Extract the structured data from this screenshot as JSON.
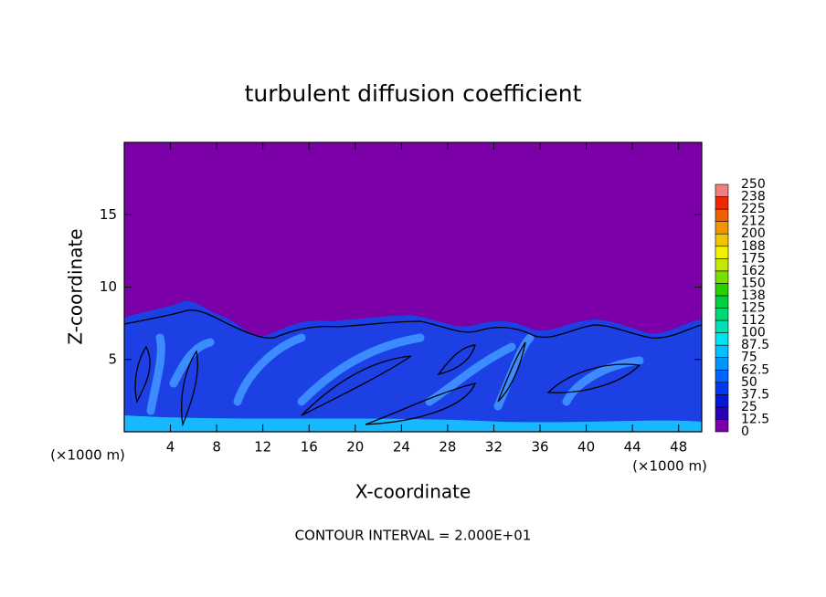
{
  "chart_data": {
    "type": "contour",
    "title": "turbulent diffusion coefficient",
    "x_label": "X-coordinate",
    "y_label": "Z-coordinate",
    "x_unit_label": "(×1000 m)",
    "y_unit_label": "(×1000 m)",
    "footer": "CONTOUR INTERVAL = 2.000E+01",
    "xlim": [
      0,
      50
    ],
    "xticks": [
      4,
      8,
      12,
      16,
      20,
      24,
      28,
      32,
      36,
      40,
      44,
      48
    ],
    "ylim": [
      0,
      20
    ],
    "yticks": [
      5,
      10,
      15
    ],
    "colorbar": {
      "levels": [
        0,
        12.5,
        25,
        37.5,
        50,
        62.5,
        75,
        87.5,
        100,
        112,
        125,
        138,
        150,
        162,
        175,
        188,
        200,
        212,
        225,
        238,
        250
      ],
      "colors": [
        "#7800a8",
        "#2a00b4",
        "#0018d8",
        "#0038f0",
        "#0064ff",
        "#0094ff",
        "#00c0ff",
        "#00e4f0",
        "#00e0b4",
        "#00d878",
        "#00d040",
        "#28d000",
        "#78e000",
        "#c4e800",
        "#f0f000",
        "#f0c400",
        "#f09400",
        "#f06000",
        "#f02800",
        "#f08080"
      ]
    }
  }
}
